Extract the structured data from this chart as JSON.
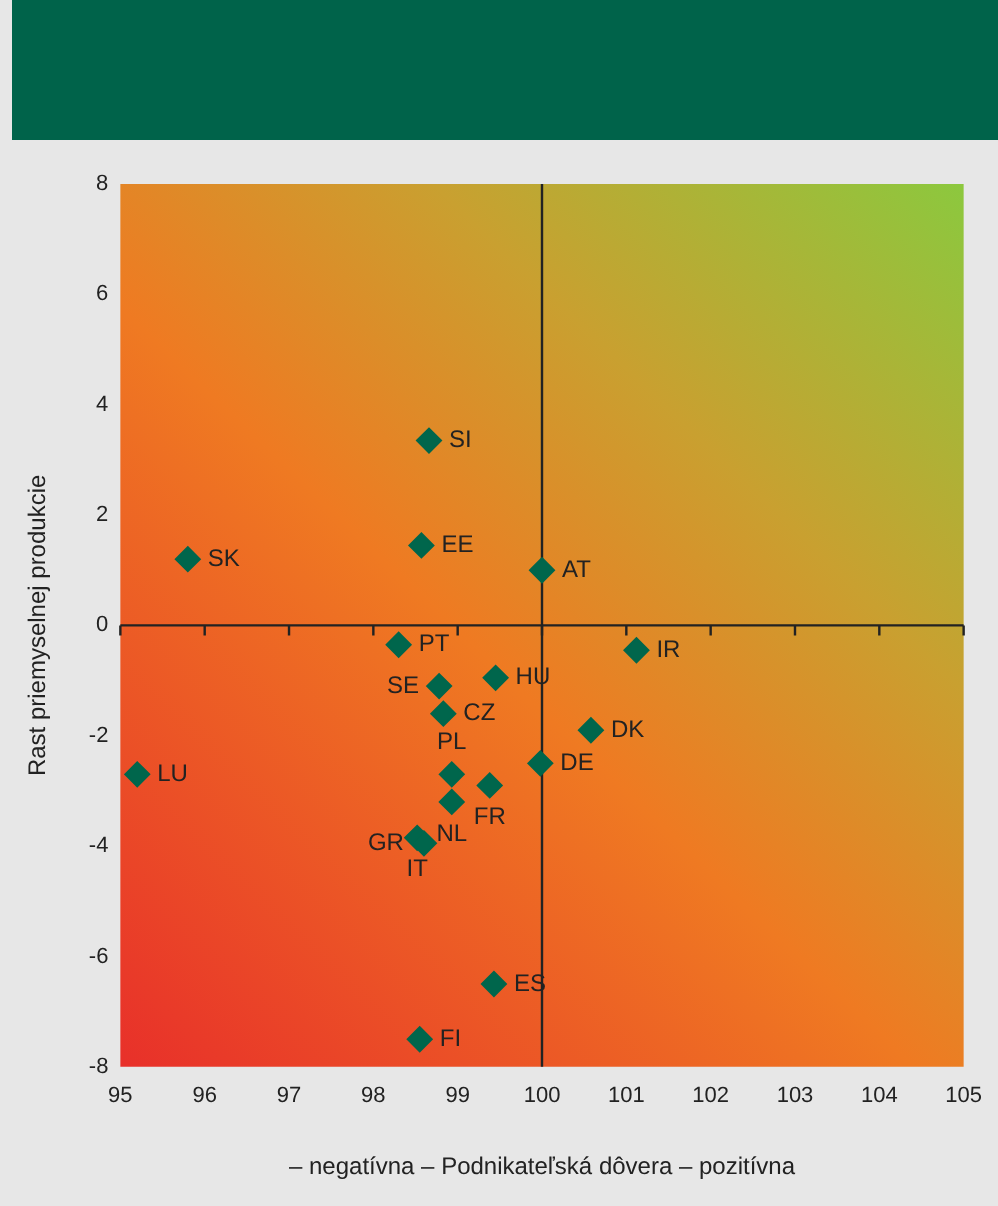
{
  "chart_data": {
    "type": "scatter",
    "xlabel": "– negatívna – Podnikateľská dôvera – pozitívna",
    "ylabel": "Rast priemyselnej produkcie",
    "x": [
      98.66,
      98.57,
      95.8,
      100.0,
      98.3,
      98.78,
      99.45,
      98.83,
      101.12,
      100.58,
      98.93,
      99.98,
      99.38,
      98.93,
      98.52,
      98.6,
      95.2,
      99.43,
      98.55
    ],
    "series": [
      {
        "color": "#00664c",
        "values": [
          3.35,
          1.45,
          1.2,
          1.0,
          -0.35,
          -1.1,
          -0.95,
          -1.6,
          -0.45,
          -1.9,
          -2.7,
          -2.5,
          -2.9,
          -3.2,
          -3.85,
          -3.95,
          -2.7,
          -6.5,
          -7.5
        ]
      }
    ],
    "marker": "diamond",
    "xlim": [
      95,
      105
    ],
    "ylim": [
      -8,
      8
    ],
    "xticks": [
      95,
      96,
      97,
      98,
      99,
      100,
      101,
      102,
      103,
      104,
      105
    ],
    "yticks": [
      -8,
      -6,
      -4,
      -2,
      0,
      2,
      4,
      6,
      8
    ],
    "grid": false,
    "legend": false,
    "ref_lines": [
      {
        "axis": "x",
        "value": 100,
        "color": "#222222"
      },
      {
        "axis": "y",
        "value": 0,
        "color": "#222222"
      }
    ],
    "annotations": [
      {
        "text": "SI",
        "x": 98.66,
        "y": 3.35
      },
      {
        "text": "EE",
        "x": 98.57,
        "y": 1.45
      },
      {
        "text": "SK",
        "x": 95.8,
        "y": 1.2
      },
      {
        "text": "AT",
        "x": 100.0,
        "y": 1.0
      },
      {
        "text": "PT",
        "x": 98.3,
        "y": -0.35
      },
      {
        "text": "SE",
        "x": 98.78,
        "y": -1.1
      },
      {
        "text": "HU",
        "x": 99.45,
        "y": -0.95
      },
      {
        "text": "CZ",
        "x": 98.83,
        "y": -1.6
      },
      {
        "text": "IR",
        "x": 101.12,
        "y": -0.45
      },
      {
        "text": "DK",
        "x": 100.58,
        "y": -1.9
      },
      {
        "text": "PL",
        "x": 98.93,
        "y": -2.7
      },
      {
        "text": "DE",
        "x": 99.98,
        "y": -2.5
      },
      {
        "text": "FR",
        "x": 99.38,
        "y": -2.9
      },
      {
        "text": "NL",
        "x": 98.93,
        "y": -3.2
      },
      {
        "text": "IT",
        "x": 98.52,
        "y": -3.85
      },
      {
        "text": "GR",
        "x": 98.6,
        "y": -3.95
      },
      {
        "text": "LU",
        "x": 95.2,
        "y": -2.7
      },
      {
        "text": "ES",
        "x": 99.43,
        "y": -6.5
      },
      {
        "text": "FI",
        "x": 98.55,
        "y": -7.5
      }
    ]
  }
}
